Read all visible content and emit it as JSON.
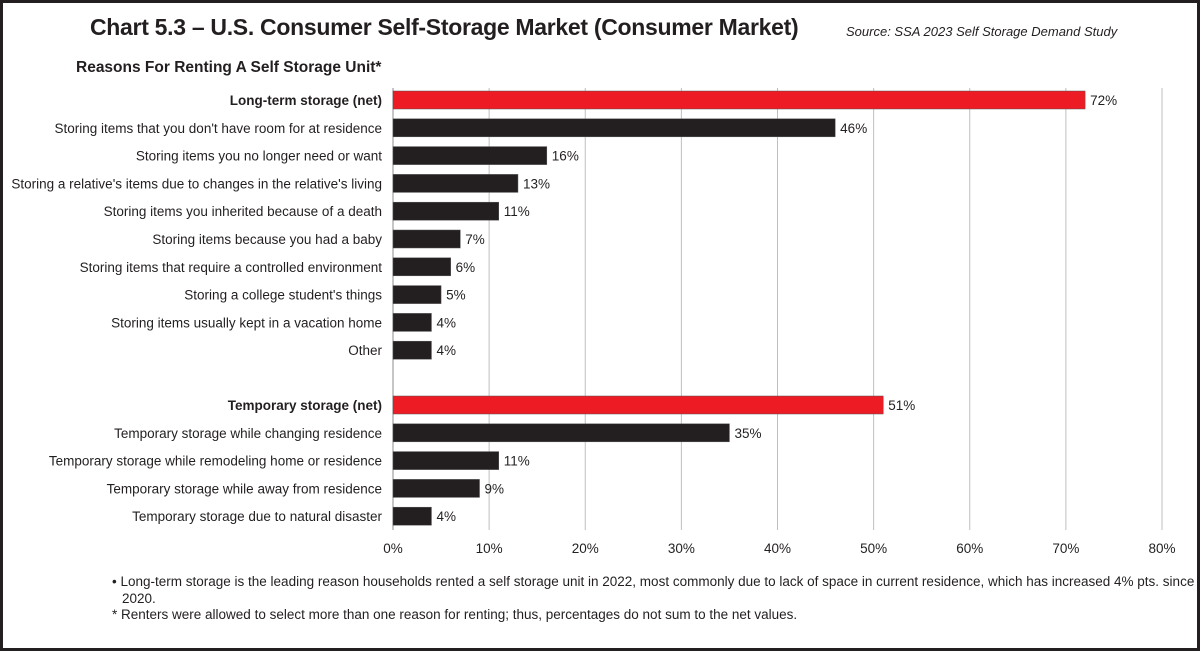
{
  "title": "Chart 5.3 – U.S. Consumer Self-Storage Market (Consumer Market)",
  "source": "Source: SSA 2023 Self Storage Demand Study",
  "subtitle": "Reasons For Renting A Self Storage Unit*",
  "notes": [
    "• Long-term storage is the leading reason households rented a self storage unit in 2022, most commonly due to lack of space in current residence, which has increased 4% pts. since 2020.",
    "* Renters were allowed to select more than one reason for renting; thus, percentages do not sum to the net values."
  ],
  "colors": {
    "net": "#ed1c24",
    "item": "#231f20",
    "grid": "#bfbfbf"
  },
  "chart_data": {
    "type": "bar",
    "orientation": "horizontal",
    "xlim": [
      0,
      80
    ],
    "xticks": [
      0,
      10,
      20,
      30,
      40,
      50,
      60,
      70,
      80
    ],
    "xtick_labels": [
      "0%",
      "10%",
      "20%",
      "30%",
      "40%",
      "50%",
      "60%",
      "70%",
      "80%"
    ],
    "grid": "vertical",
    "categories": [
      {
        "label": "Long-term storage (net)",
        "value": 72,
        "net": true
      },
      {
        "label": "Storing items that you don't have room for at residence",
        "value": 46
      },
      {
        "label": "Storing items you no longer need or want",
        "value": 16
      },
      {
        "label": "Storing a relative's items due to changes in the relative's living",
        "value": 13
      },
      {
        "label": "Storing items you inherited because of a death",
        "value": 11
      },
      {
        "label": "Storing items because you had a baby",
        "value": 7
      },
      {
        "label": "Storing items that require a controlled environment",
        "value": 6
      },
      {
        "label": "Storing a college student's things",
        "value": 5
      },
      {
        "label": "Storing items usually kept in a vacation home",
        "value": 4
      },
      {
        "label": "Other",
        "value": 4
      },
      {
        "label": "Temporary storage (net)",
        "value": 51,
        "net": true
      },
      {
        "label": "Temporary storage while changing residence",
        "value": 35
      },
      {
        "label": "Temporary storage while remodeling home or residence",
        "value": 11
      },
      {
        "label": "Temporary storage while away from residence",
        "value": 9
      },
      {
        "label": "Temporary storage due to natural disaster",
        "value": 4
      }
    ],
    "value_labels": [
      "72%",
      "46%",
      "16%",
      "13%",
      "11%",
      "7%",
      "6%",
      "5%",
      "4%",
      "4%",
      "51%",
      "35%",
      "11%",
      "9%",
      "4%"
    ]
  }
}
